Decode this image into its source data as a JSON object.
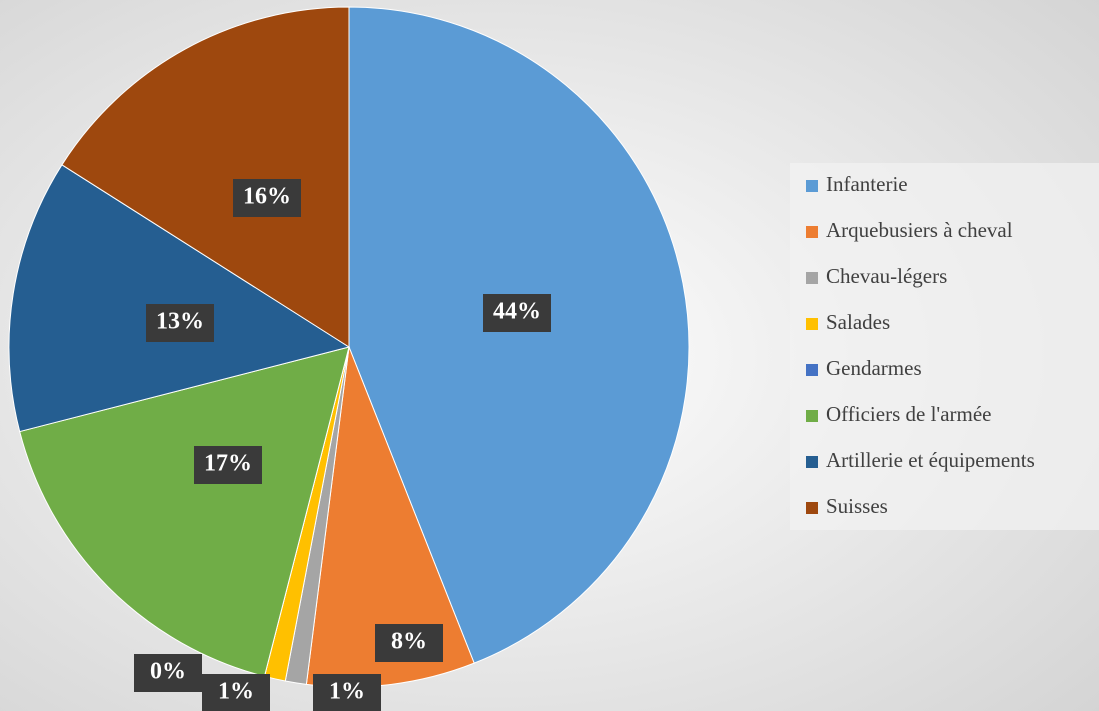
{
  "chart_data": {
    "type": "pie",
    "categories": [
      "Infanterie",
      "Arquebusiers à cheval",
      "Chevau-légers",
      "Salades",
      "Gendarmes",
      "Officiers de l'armée",
      "Artillerie et équipements",
      "Suisses"
    ],
    "values": [
      44,
      8,
      1,
      1,
      0,
      17,
      13,
      16
    ],
    "value_labels": [
      "44%",
      "8%",
      "1%",
      "1%",
      "0%",
      "17%",
      "13%",
      "16%"
    ],
    "colors": [
      "#5b9bd5",
      "#ed7d31",
      "#a5a5a5",
      "#ffc000",
      "#4472c4",
      "#70ad47",
      "#255e91",
      "#9e480e"
    ],
    "legend": "right"
  }
}
